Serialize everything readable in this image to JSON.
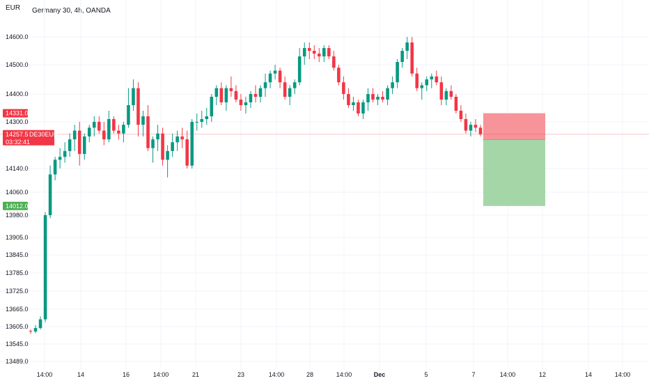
{
  "header": {
    "currency": "EUR",
    "title": "Germany 30, 4h, OANDA"
  },
  "chart_data": {
    "type": "candlestick",
    "symbol": "DE30EUR",
    "colors": {
      "up": "#26a69a",
      "down": "#ef5350",
      "upbody": "#089981",
      "downbody": "#f23645"
    },
    "y_ticks": [
      14600.0,
      14500.0,
      14400.0,
      14300.0,
      14140.0,
      14060.0,
      13980.0,
      13905.0,
      13845.0,
      13785.0,
      13725.0,
      13665.0,
      13605.0,
      13545.0,
      13489.0
    ],
    "x_ticks": [
      {
        "label": "14:00",
        "bold": false
      },
      {
        "label": "14",
        "bold": false
      },
      {
        "label": "16",
        "bold": false
      },
      {
        "label": "14:00",
        "bold": false
      },
      {
        "label": "21",
        "bold": false
      },
      {
        "label": "23",
        "bold": false
      },
      {
        "label": "14:00",
        "bold": false
      },
      {
        "label": "28",
        "bold": false
      },
      {
        "label": "14:00",
        "bold": false
      },
      {
        "label": "Dec",
        "bold": true
      },
      {
        "label": "5",
        "bold": false
      },
      {
        "label": "7",
        "bold": false
      },
      {
        "label": "14:00",
        "bold": false
      },
      {
        "label": "12",
        "bold": false
      },
      {
        "label": "14",
        "bold": false
      },
      {
        "label": "14:00",
        "bold": false
      }
    ],
    "price_badges": {
      "stop": {
        "label": "14331.0",
        "value": 14331.0,
        "color": "#f23645"
      },
      "current": {
        "label": "14257.5",
        "value": 14257.5,
        "color": "#f23645",
        "countdown": "03:32:41"
      },
      "entry": {
        "label": "14239.0",
        "value": 14239.0,
        "color": "#787b86"
      },
      "target": {
        "label": "14012.0",
        "value": 14012.0,
        "color": "#4caf50"
      }
    },
    "position_tool": {
      "type": "short",
      "entry": 14239.0,
      "stop": 14331.0,
      "target": 14012.0,
      "risk_color": "#f7949a",
      "reward_color": "#a5d6a7"
    },
    "candles": [
      [
        13590,
        13595,
        13580,
        13588
      ],
      [
        13588,
        13610,
        13582,
        13600
      ],
      [
        13600,
        13640,
        13595,
        13630
      ],
      [
        13630,
        13990,
        13620,
        13980
      ],
      [
        13980,
        14150,
        13970,
        14120
      ],
      [
        14120,
        14180,
        14100,
        14170
      ],
      [
        14170,
        14210,
        14140,
        14180
      ],
      [
        14180,
        14230,
        14160,
        14200
      ],
      [
        14200,
        14260,
        14180,
        14240
      ],
      [
        14240,
        14290,
        14200,
        14270
      ],
      [
        14270,
        14300,
        14150,
        14190
      ],
      [
        14190,
        14260,
        14170,
        14250
      ],
      [
        14250,
        14290,
        14230,
        14280
      ],
      [
        14280,
        14320,
        14250,
        14300
      ],
      [
        14300,
        14320,
        14260,
        14270
      ],
      [
        14270,
        14300,
        14220,
        14240
      ],
      [
        14240,
        14340,
        14230,
        14310
      ],
      [
        14310,
        14320,
        14260,
        14270
      ],
      [
        14270,
        14290,
        14240,
        14260
      ],
      [
        14260,
        14300,
        14230,
        14290
      ],
      [
        14290,
        14420,
        14280,
        14360
      ],
      [
        14360,
        14450,
        14340,
        14420
      ],
      [
        14420,
        14440,
        14250,
        14290
      ],
      [
        14290,
        14340,
        14250,
        14320
      ],
      [
        14320,
        14360,
        14200,
        14210
      ],
      [
        14210,
        14250,
        14160,
        14240
      ],
      [
        14240,
        14290,
        14200,
        14260
      ],
      [
        14260,
        14280,
        14150,
        14170
      ],
      [
        14170,
        14220,
        14110,
        14200
      ],
      [
        14200,
        14260,
        14180,
        14230
      ],
      [
        14230,
        14270,
        14200,
        14250
      ],
      [
        14250,
        14280,
        14210,
        14240
      ],
      [
        14240,
        14270,
        14140,
        14150
      ],
      [
        14150,
        14310,
        14140,
        14300
      ],
      [
        14300,
        14330,
        14270,
        14300
      ],
      [
        14300,
        14340,
        14280,
        14310
      ],
      [
        14310,
        14350,
        14290,
        14320
      ],
      [
        14320,
        14400,
        14300,
        14390
      ],
      [
        14390,
        14430,
        14360,
        14420
      ],
      [
        14420,
        14440,
        14360,
        14370
      ],
      [
        14370,
        14430,
        14340,
        14420
      ],
      [
        14420,
        14460,
        14390,
        14410
      ],
      [
        14410,
        14430,
        14370,
        14380
      ],
      [
        14380,
        14400,
        14340,
        14360
      ],
      [
        14360,
        14390,
        14330,
        14370
      ],
      [
        14370,
        14410,
        14350,
        14400
      ],
      [
        14400,
        14430,
        14370,
        14390
      ],
      [
        14390,
        14430,
        14370,
        14420
      ],
      [
        14420,
        14470,
        14390,
        14440
      ],
      [
        14440,
        14480,
        14420,
        14470
      ],
      [
        14470,
        14500,
        14450,
        14480
      ],
      [
        14480,
        14490,
        14420,
        14440
      ],
      [
        14440,
        14460,
        14380,
        14390
      ],
      [
        14390,
        14430,
        14360,
        14420
      ],
      [
        14420,
        14450,
        14400,
        14440
      ],
      [
        14440,
        14560,
        14430,
        14530
      ],
      [
        14530,
        14580,
        14500,
        14560
      ],
      [
        14560,
        14580,
        14520,
        14550
      ],
      [
        14550,
        14570,
        14520,
        14540
      ],
      [
        14540,
        14560,
        14510,
        14530
      ],
      [
        14530,
        14570,
        14510,
        14560
      ],
      [
        14560,
        14570,
        14520,
        14530
      ],
      [
        14530,
        14550,
        14480,
        14490
      ],
      [
        14490,
        14500,
        14430,
        14440
      ],
      [
        14440,
        14460,
        14380,
        14400
      ],
      [
        14400,
        14420,
        14350,
        14360
      ],
      [
        14360,
        14390,
        14340,
        14370
      ],
      [
        14370,
        14380,
        14320,
        14330
      ],
      [
        14330,
        14380,
        14310,
        14370
      ],
      [
        14370,
        14420,
        14340,
        14400
      ],
      [
        14400,
        14420,
        14370,
        14380
      ],
      [
        14380,
        14400,
        14360,
        14390
      ],
      [
        14390,
        14410,
        14370,
        14380
      ],
      [
        14380,
        14430,
        14360,
        14420
      ],
      [
        14420,
        14460,
        14400,
        14440
      ],
      [
        14440,
        14520,
        14420,
        14510
      ],
      [
        14510,
        14560,
        14490,
        14550
      ],
      [
        14550,
        14600,
        14520,
        14580
      ],
      [
        14580,
        14600,
        14460,
        14470
      ],
      [
        14470,
        14490,
        14410,
        14420
      ],
      [
        14420,
        14440,
        14380,
        14430
      ],
      [
        14430,
        14460,
        14410,
        14450
      ],
      [
        14450,
        14470,
        14420,
        14460
      ],
      [
        14460,
        14480,
        14430,
        14440
      ],
      [
        14440,
        14460,
        14360,
        14380
      ],
      [
        14380,
        14420,
        14360,
        14410
      ],
      [
        14410,
        14430,
        14380,
        14390
      ],
      [
        14390,
        14400,
        14330,
        14340
      ],
      [
        14340,
        14360,
        14300,
        14310
      ],
      [
        14310,
        14330,
        14260,
        14270
      ],
      [
        14270,
        14300,
        14250,
        14290
      ],
      [
        14290,
        14310,
        14265,
        14280
      ],
      [
        14280,
        14290,
        14250,
        14257.5
      ]
    ]
  }
}
